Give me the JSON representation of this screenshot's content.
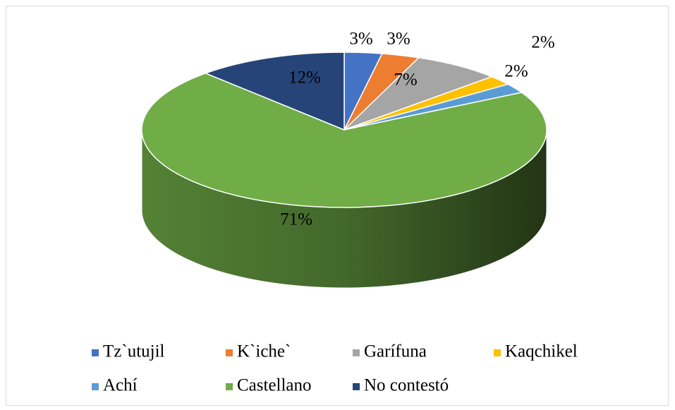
{
  "chart_data": {
    "type": "pie3d",
    "categories": [
      "Tz`utujil",
      "K`iche`",
      "Garífuna",
      "Kaqchikel",
      "Achí",
      "Castellano",
      "No contestó"
    ],
    "values": [
      3,
      3,
      7,
      2,
      2,
      71,
      12
    ],
    "value_labels": [
      "3%",
      "3%",
      "7%",
      "2%",
      "2%",
      "71%",
      "12%"
    ],
    "colors": [
      "#4472c4",
      "#ed7d31",
      "#a5a5a5",
      "#ffc000",
      "#5b9bd5",
      "#70ad47",
      "#264478"
    ],
    "legend": "bottom"
  }
}
